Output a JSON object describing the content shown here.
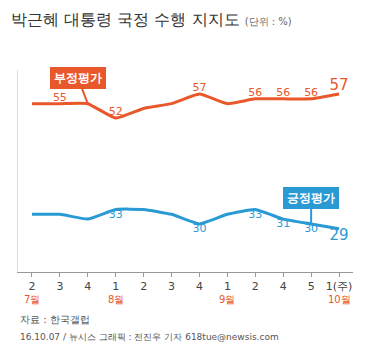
{
  "chart_data": {
    "type": "line",
    "title": "박근혜 대통령 국정 수행 지지도",
    "subtitle": "(단위 : %)",
    "categories": [
      "2",
      "3",
      "4",
      "1",
      "2",
      "3",
      "4",
      "1",
      "2",
      "4",
      "5",
      "1(주)"
    ],
    "series": [
      {
        "name": "부정평가",
        "color": "#e9582b",
        "values": [
          55,
          55,
          55,
          52,
          54,
          55,
          57,
          55,
          56,
          56,
          56,
          57
        ],
        "value_labels": [
          null,
          "55",
          null,
          "52",
          null,
          null,
          "57",
          null,
          "56",
          "56",
          "56",
          "57"
        ]
      },
      {
        "name": "긍정평가",
        "color": "#2a9ad4",
        "values": [
          32,
          32,
          31,
          33,
          33,
          32,
          30,
          32,
          33,
          31,
          30,
          29
        ],
        "value_labels": [
          null,
          null,
          null,
          "33",
          null,
          null,
          "30",
          null,
          "33",
          "31",
          "30",
          "29"
        ]
      }
    ],
    "ylim": [
      20,
      62
    ],
    "tick_labels": "x",
    "grid": false,
    "data_labels": true,
    "annotations": [
      {
        "text": "7월",
        "category": 0
      },
      {
        "text": "8월",
        "category": 3
      },
      {
        "text": "9월",
        "category": 7
      },
      {
        "text": "10월",
        "category": 11
      }
    ],
    "source": "자료 : 한국갤럽",
    "credit": "16.10.07 / 뉴시스 그래픽 : 전진우 기자 618tue@newsis.com"
  }
}
